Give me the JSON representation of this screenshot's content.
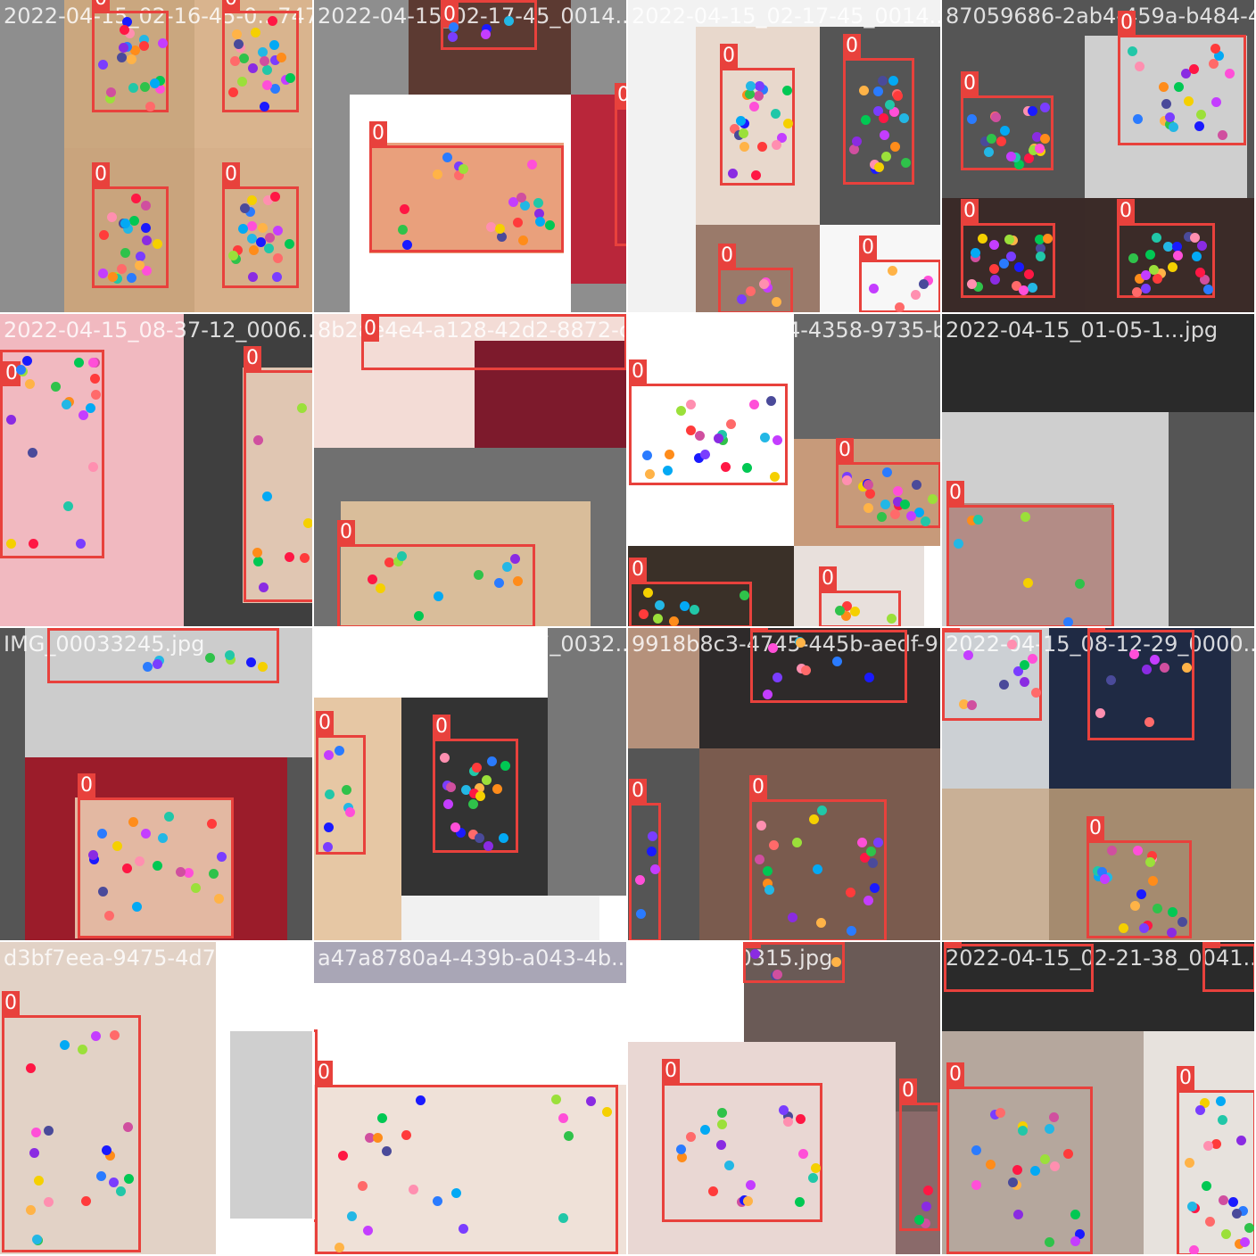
{
  "palette": {
    "box": "#e8413c",
    "keypoints": [
      "#ff3b3b",
      "#ff8c1a",
      "#f5d000",
      "#9be03a",
      "#2fc24a",
      "#21c7a8",
      "#23b7e5",
      "#2a7bff",
      "#1a1aff",
      "#7a3dff",
      "#c43dff",
      "#ff4fd8",
      "#ff8fb0",
      "#ff6a6a",
      "#ffb347",
      "#4a4a9a",
      "#d04f9f",
      "#8a2be2",
      "#00c853",
      "#ff1744",
      "#03a9f4"
    ]
  },
  "mosaics": [
    {
      "filename": "2022-04-15_02-16-45-0...7475260f66-fde-4683-96fa-0b...",
      "label": "0",
      "regions": [
        {
          "color": "#8e8e8e"
        },
        {
          "color": "#caa77f"
        },
        {
          "color": "#d9b48e"
        },
        {
          "color": "#c9a47d"
        },
        {
          "color": "#d6b08a"
        },
        {
          "color": "#777777"
        }
      ],
      "boxes": [
        {
          "label": "0"
        },
        {
          "label": "0"
        },
        {
          "label": "0"
        },
        {
          "label": "0"
        }
      ]
    },
    {
      "filename": "2022-04-15_02-17-45_0014...",
      "label": "0",
      "regions": [
        {
          "color": "#8e8e8e"
        },
        {
          "color": "#ffffff"
        },
        {
          "color": "#e9a07c"
        },
        {
          "color": "#b9263a"
        },
        {
          "color": "#5c3a32"
        }
      ],
      "boxes": [
        {
          "label": "0"
        },
        {
          "label": "0"
        },
        {
          "label": "0"
        }
      ]
    },
    {
      "filename": "2022-04-15_02-17-45_0014...",
      "label": "0",
      "regions": [
        {
          "color": "#f2f2f2"
        },
        {
          "color": "#555555"
        },
        {
          "color": "#e8d8cc"
        },
        {
          "color": "#9a7a6a"
        },
        {
          "color": "#f7f7f7"
        }
      ],
      "boxes": [
        {
          "label": "0"
        },
        {
          "label": "0"
        },
        {
          "label": "0"
        },
        {
          "label": "0"
        }
      ]
    },
    {
      "filename": "87059686-2ab4-459a-b484-4...",
      "label": "0",
      "regions": [
        {
          "color": "#555555"
        },
        {
          "color": "#cfcfcf"
        },
        {
          "color": "#3a2a28"
        },
        {
          "color": "#3b2b28"
        }
      ],
      "boxes": [
        {
          "label": "0"
        },
        {
          "label": "0"
        },
        {
          "label": "0"
        },
        {
          "label": "0"
        }
      ]
    },
    {
      "filename": "2022-04-15_08-37-12_0006...",
      "label": "0",
      "regions": [
        {
          "color": "#f1b9c0"
        },
        {
          "color": "#3f3f3f"
        },
        {
          "color": "#e0c6b2"
        }
      ],
      "boxes": [
        {
          "label": "0"
        },
        {
          "label": "0"
        }
      ]
    },
    {
      "filename": "8b2ae4e4-a128-42d2-8872-c...",
      "label": "0",
      "regions": [
        {
          "color": "#f3dcd6"
        },
        {
          "color": "#7d1a2c"
        },
        {
          "color": "#707070"
        },
        {
          "color": "#d9bd9a"
        }
      ],
      "boxes": [
        {
          "label": "0"
        },
        {
          "label": "0"
        }
      ]
    },
    {
      "filename": "44366ac6-b564-4358-9735-b...",
      "label": "0",
      "regions": [
        {
          "color": "#ffffff"
        },
        {
          "color": "#666666"
        },
        {
          "color": "#c79a7a"
        },
        {
          "color": "#3a3028"
        },
        {
          "color": "#e8e0dc"
        },
        {
          "color": "#ffffff"
        }
      ],
      "boxes": [
        {
          "label": "0"
        },
        {
          "label": "0"
        },
        {
          "label": "0"
        },
        {
          "label": "0"
        }
      ]
    },
    {
      "filename": "2022-04-15_01-05-1...jpg",
      "label": "0",
      "regions": [
        {
          "color": "#2a2a2a"
        },
        {
          "color": "#cfcfcf"
        },
        {
          "color": "#555555"
        },
        {
          "color": "#b38c86"
        }
      ],
      "boxes": [
        {
          "label": "0"
        },
        {
          "label": "0"
        }
      ]
    },
    {
      "filename": "IMG_00033245.jpg",
      "label": "0",
      "regions": [
        {
          "color": "#555555"
        },
        {
          "color": "#cccccc"
        },
        {
          "color": "#9b1c2a"
        },
        {
          "color": "#e3b8a2"
        }
      ],
      "boxes": [
        {
          "label": "0"
        },
        {
          "label": "0"
        }
      ]
    },
    {
      "filename": "2022-04-15_02-13-17_0032...jpg",
      "label": "0",
      "regions": [
        {
          "color": "#ffffff"
        },
        {
          "color": "#333333"
        },
        {
          "color": "#e6c7a4"
        },
        {
          "color": "#777777"
        },
        {
          "color": "#f1f1f1"
        }
      ],
      "boxes": [
        {
          "label": "0"
        },
        {
          "label": "0"
        }
      ]
    },
    {
      "filename": "9918b8c3-4745-445b-aedf-9...",
      "label": "0",
      "regions": [
        {
          "color": "#b5917b"
        },
        {
          "color": "#2e2a2a"
        },
        {
          "color": "#555555"
        },
        {
          "color": "#7a5b4e"
        }
      ],
      "boxes": [
        {
          "label": "0"
        },
        {
          "label": "0"
        },
        {
          "label": "0"
        }
      ]
    },
    {
      "filename": "2022-04-15_08-12-29_0000...",
      "label": "0",
      "regions": [
        {
          "color": "#ccd0d4"
        },
        {
          "color": "#1f2a44"
        },
        {
          "color": "#c9b096"
        },
        {
          "color": "#a58b6f"
        }
      ],
      "boxes": [
        {
          "label": "0"
        },
        {
          "label": "0"
        },
        {
          "label": "0"
        }
      ]
    },
    {
      "filename": "d3bf7eea-9475-4d74-b626-5...",
      "label": "0",
      "regions": [
        {
          "color": "#e2d2c6"
        },
        {
          "color": "#ffffff"
        },
        {
          "color": "#cfcfcf"
        }
      ],
      "boxes": [
        {
          "label": "0"
        }
      ]
    },
    {
      "filename": "a47a8780a4-439b-a043-4b...",
      "label": "0",
      "regions": [
        {
          "color": "#ffffff"
        },
        {
          "color": "#a9a6b6"
        },
        {
          "color": "#efe1d8"
        }
      ],
      "boxes": [
        {
          "label": "0"
        },
        {
          "label": "0"
        }
      ]
    },
    {
      "filename": "IMG_00030315.jpg",
      "label": "0",
      "regions": [
        {
          "color": "#ffffff"
        },
        {
          "color": "#6a5a56"
        },
        {
          "color": "#e9d7d3"
        },
        {
          "color": "#8a6a6a"
        }
      ],
      "boxes": [
        {
          "label": "0"
        },
        {
          "label": "0"
        },
        {
          "label": "0"
        }
      ]
    },
    {
      "filename": "2022-04-15_02-21-38_0041...",
      "label": "0",
      "regions": [
        {
          "color": "#2a2a2a"
        },
        {
          "color": "#b5a79d"
        },
        {
          "color": "#e7e2dd"
        }
      ],
      "boxes": [
        {
          "label": "0"
        },
        {
          "label": "0"
        },
        {
          "label": "0"
        },
        {
          "label": "0"
        }
      ]
    }
  ]
}
